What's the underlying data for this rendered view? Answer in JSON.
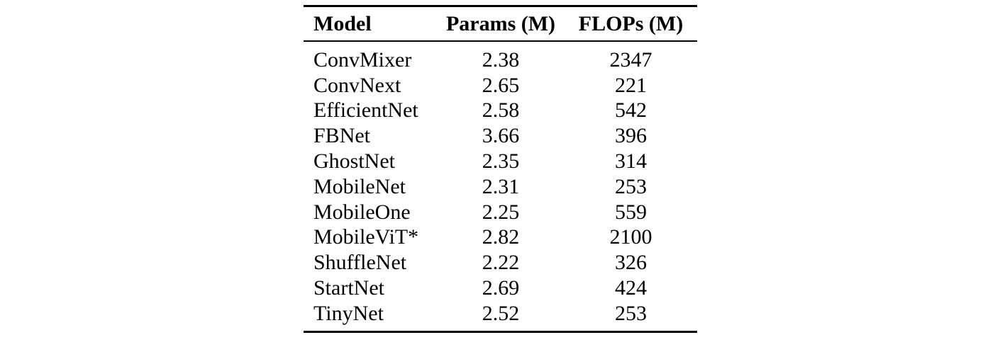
{
  "page": {
    "background_color": "#ffffff",
    "text_color": "#000000",
    "rule_color": "#000000"
  },
  "table": {
    "columns": [
      {
        "key": "model",
        "label": "Model",
        "align": "left"
      },
      {
        "key": "params",
        "label": "Params (M)",
        "align": "center"
      },
      {
        "key": "flops",
        "label": "FLOPs (M)",
        "align": "center"
      }
    ],
    "rows": [
      {
        "model": "ConvMixer",
        "params": "2.38",
        "flops": "2347"
      },
      {
        "model": "ConvNext",
        "params": "2.65",
        "flops": "221"
      },
      {
        "model": "EfficientNet",
        "params": "2.58",
        "flops": "542"
      },
      {
        "model": "FBNet",
        "params": "3.66",
        "flops": "396"
      },
      {
        "model": "GhostNet",
        "params": "2.35",
        "flops": "314"
      },
      {
        "model": "MobileNet",
        "params": "2.31",
        "flops": "253"
      },
      {
        "model": "MobileOne",
        "params": "2.25",
        "flops": "559"
      },
      {
        "model": "MobileViT*",
        "params": "2.82",
        "flops": "2100"
      },
      {
        "model": "ShuffleNet",
        "params": "2.22",
        "flops": "326"
      },
      {
        "model": "StartNet",
        "params": "2.69",
        "flops": "424"
      },
      {
        "model": "TinyNet",
        "params": "2.52",
        "flops": "253"
      }
    ]
  },
  "chart_data": {
    "type": "table",
    "columns": [
      "Model",
      "Params (M)",
      "FLOPs (M)"
    ],
    "rows": [
      [
        "ConvMixer",
        2.38,
        2347
      ],
      [
        "ConvNext",
        2.65,
        221
      ],
      [
        "EfficientNet",
        2.58,
        542
      ],
      [
        "FBNet",
        3.66,
        396
      ],
      [
        "GhostNet",
        2.35,
        314
      ],
      [
        "MobileNet",
        2.31,
        253
      ],
      [
        "MobileOne",
        2.25,
        559
      ],
      [
        "MobileViT*",
        2.82,
        2100
      ],
      [
        "ShuffleNet",
        2.22,
        326
      ],
      [
        "StartNet",
        2.69,
        424
      ],
      [
        "TinyNet",
        2.52,
        253
      ]
    ]
  }
}
